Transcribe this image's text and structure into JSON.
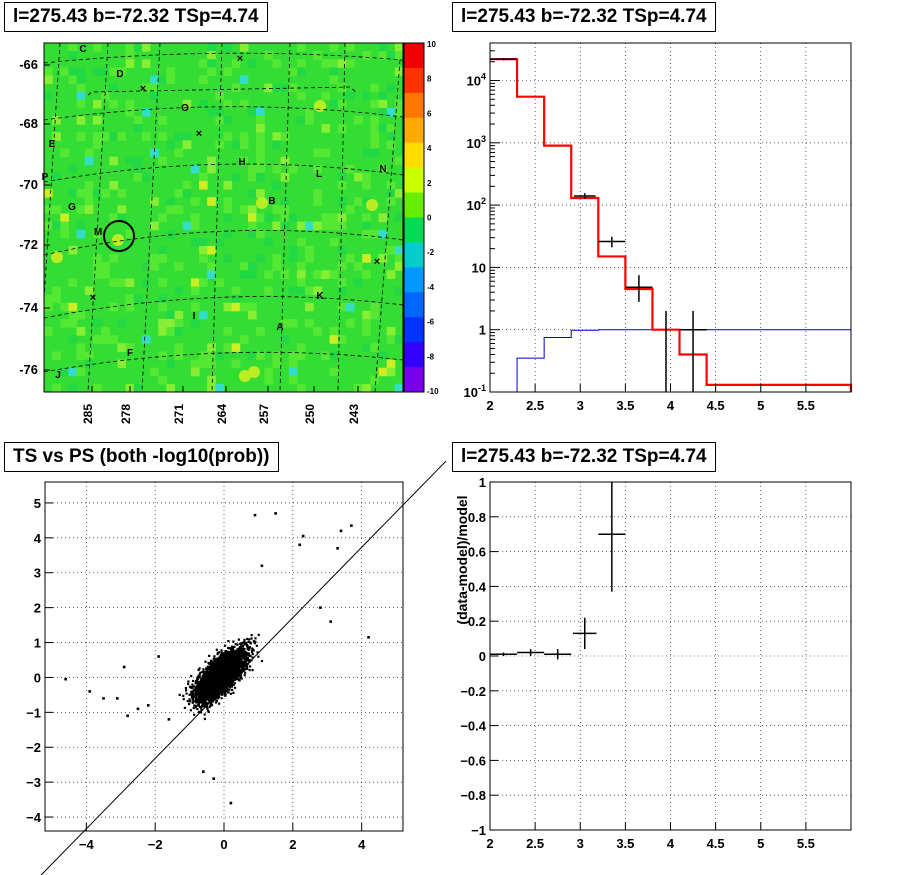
{
  "panels": {
    "map": {
      "title": "l=275.43 b=-72.32 TSp=4.74"
    },
    "counts": {
      "title": "l=275.43 b=-72.32 TSp=4.74"
    },
    "ts_vs_ps": {
      "title": "TS vs PS (both -log10(prob))"
    },
    "residual": {
      "title": "l=275.43 b=-72.32 TSp=4.74"
    }
  },
  "colors": {
    "model": "#ff0000",
    "background": "#0000cc",
    "data": "#000000",
    "map_base": "#33dd33"
  },
  "chart_data": [
    {
      "type": "heatmap",
      "title": "l=275.43 b=-72.32 TSp=4.74",
      "xticks": [
        "285",
        "278",
        "271",
        "264",
        "257",
        "250",
        "243"
      ],
      "yticks": [
        "-66",
        "-68",
        "-70",
        "-72",
        "-74",
        "-76"
      ],
      "colorbar": [
        "10",
        "8",
        "6",
        "4",
        "2",
        "0",
        "-2",
        "-4",
        "-6",
        "-8",
        "-10"
      ],
      "zlim": [
        -10,
        10
      ],
      "source_labels": [
        "C",
        "D",
        "O",
        "E",
        "H",
        "L",
        "N",
        "P",
        "G",
        "B",
        "M",
        "K",
        "I",
        "A",
        "F",
        "J"
      ],
      "marker": "circle at l=275.43 b=-72.32"
    },
    {
      "type": "line",
      "title": "l=275.43 b=-72.32 TSp=4.74",
      "xlim": [
        2,
        6
      ],
      "ylog": true,
      "ylim": [
        0.1,
        40000
      ],
      "xticks": [
        "2",
        "2.5",
        "3",
        "3.5",
        "4",
        "4.5",
        "5",
        "5.5"
      ],
      "yticks": [
        "10^{-1}",
        "1",
        "10",
        "10^{2}",
        "10^{3}",
        "10^{4}"
      ],
      "series": [
        {
          "edges": [
            2.0,
            2.3,
            2.6,
            2.9,
            3.2,
            3.5,
            3.8,
            4.1,
            4.4,
            6.0
          ],
          "values": [
            22000,
            5500,
            900,
            130,
            15,
            4.5,
            1.0,
            0.4,
            0.13,
            0.1
          ]
        },
        {
          "edges": [
            2.0,
            2.3,
            2.6,
            2.9,
            3.2,
            3.5,
            6.0
          ],
          "values": [
            0.1,
            0.35,
            0.75,
            0.98,
            1.0,
            1.0
          ]
        }
      ],
      "points": [
        {
          "x": 2.15,
          "y": 22000,
          "xerr": 0.15,
          "ylo": 21000,
          "yhi": 23000
        },
        {
          "x": 3.05,
          "y": 140,
          "xerr": 0.12,
          "ylo": 125,
          "yhi": 155
        },
        {
          "x": 3.35,
          "y": 26,
          "xerr": 0.15,
          "ylo": 21,
          "yhi": 31
        },
        {
          "x": 3.65,
          "y": 4.8,
          "xerr": 0.15,
          "ylo": 2.8,
          "yhi": 7.5
        },
        {
          "x": 3.95,
          "y": 0.1,
          "xerr": 0.0,
          "ylo": 0.1,
          "yhi": 2.0
        },
        {
          "x": 4.25,
          "y": 1.0,
          "xerr": 0.15,
          "ylo": 0.1,
          "yhi": 2.0
        }
      ]
    },
    {
      "type": "scatter",
      "title": "TS vs PS (both -log10(prob))",
      "xlim": [
        -5.2,
        5.2
      ],
      "ylim": [
        -4.4,
        5.6
      ],
      "xticks": [
        -4,
        -2,
        0,
        2,
        4
      ],
      "yticks": [
        -4,
        -3,
        -2,
        -1,
        0,
        1,
        2,
        3,
        4,
        5
      ],
      "diagonal": "y = x",
      "n_points": 3000,
      "outliers": [
        [
          -4.6,
          -0.05
        ],
        [
          -3.9,
          -0.4
        ],
        [
          -3.5,
          -0.6
        ],
        [
          -3.1,
          -0.6
        ],
        [
          -2.8,
          -1.1
        ],
        [
          -2.5,
          -0.9
        ],
        [
          -2.9,
          0.3
        ],
        [
          -2.2,
          -0.8
        ],
        [
          -1.9,
          0.6
        ],
        [
          -1.6,
          -1.2
        ],
        [
          0.9,
          4.65
        ],
        [
          1.5,
          4.7
        ],
        [
          2.3,
          4.05
        ],
        [
          3.4,
          4.2
        ],
        [
          3.7,
          4.35
        ],
        [
          3.3,
          3.7
        ],
        [
          2.2,
          3.8
        ],
        [
          4.2,
          1.15
        ],
        [
          3.1,
          1.6
        ],
        [
          2.8,
          2.0
        ],
        [
          0.2,
          -3.6
        ],
        [
          -0.6,
          -2.7
        ],
        [
          -0.3,
          -2.9
        ],
        [
          1.1,
          3.2
        ]
      ]
    },
    {
      "type": "scatter",
      "title": "l=275.43 b=-72.32 TSp=4.74",
      "xlim": [
        2,
        6
      ],
      "ylim": [
        -1,
        1
      ],
      "xticks": [
        "2",
        "2.5",
        "3",
        "3.5",
        "4",
        "4.5",
        "5",
        "5.5"
      ],
      "yticks": [
        "-1",
        "-0.8",
        "-0.6",
        "-0.4",
        "-0.2",
        "0",
        "0.2",
        "0.4",
        "0.6",
        "0.8",
        "1"
      ],
      "ylabel": "(data-model)/model",
      "points": [
        {
          "x": 2.15,
          "y": 0.01,
          "xerr": 0.15,
          "yerr": 0.01
        },
        {
          "x": 2.45,
          "y": 0.02,
          "xerr": 0.15,
          "yerr": 0.02
        },
        {
          "x": 2.75,
          "y": 0.01,
          "xerr": 0.15,
          "yerr": 0.03
        },
        {
          "x": 3.05,
          "y": 0.13,
          "xerr": 0.13,
          "yerr": 0.09
        },
        {
          "x": 3.35,
          "y": 0.7,
          "xerr": 0.15,
          "yerr": 0.33
        }
      ]
    }
  ]
}
